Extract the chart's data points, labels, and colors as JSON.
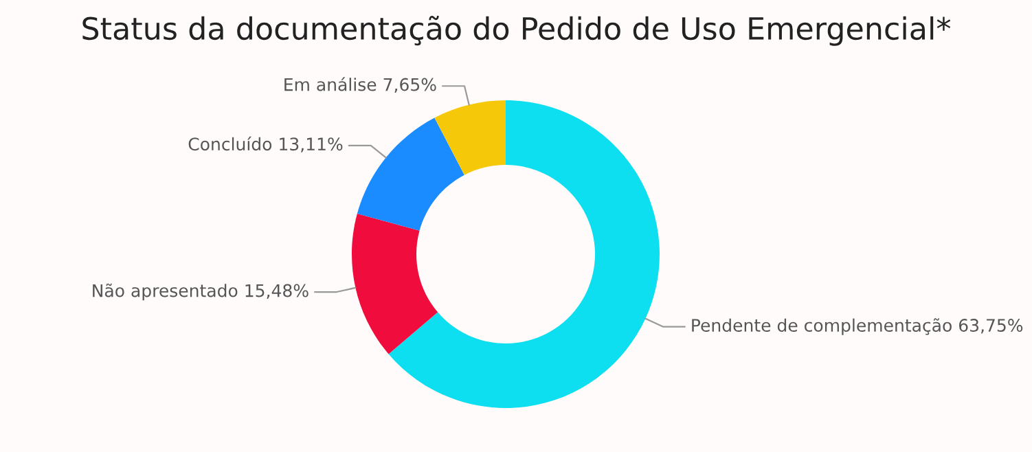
{
  "chart_data": {
    "type": "donut",
    "title": "Status da documentação do Pedido de Uso Emergencial*",
    "categories": [
      "Pendente de complementação",
      "Não apresentado",
      "Concluído",
      "Em análise"
    ],
    "values": [
      63.75,
      15.48,
      13.11,
      7.65
    ],
    "value_labels": [
      "63,75%",
      "15,48%",
      "13,11%",
      "7,65%"
    ],
    "colors": [
      "#0ddff0",
      "#f00c3c",
      "#1a8cff",
      "#f5c90a"
    ],
    "legend": false
  }
}
